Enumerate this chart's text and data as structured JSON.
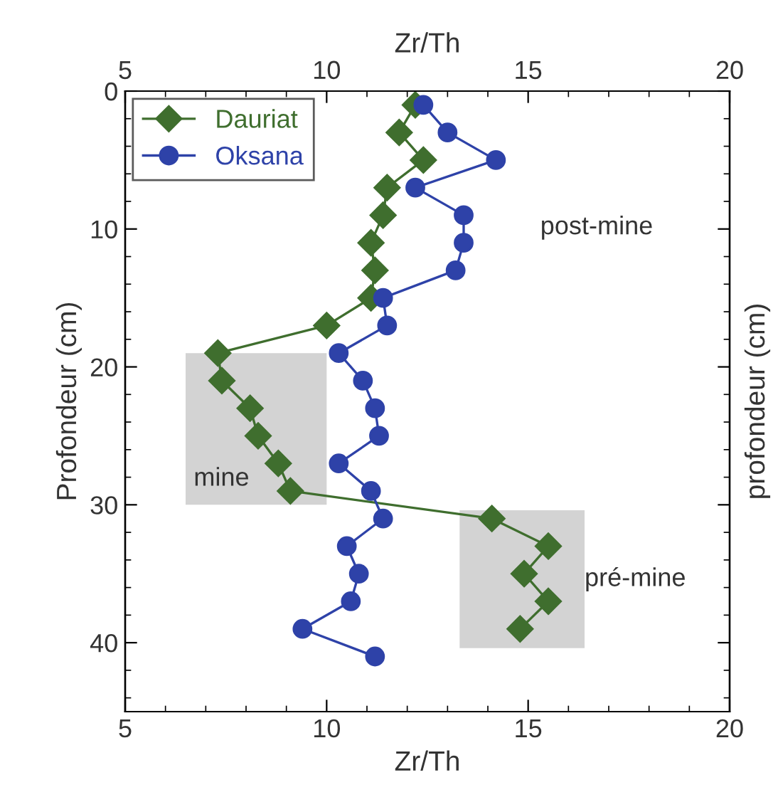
{
  "chart_data": {
    "type": "line",
    "orientation": "horizontal",
    "xlabel": "Zr/Th",
    "x2label": "Zr/Th",
    "ylabel": "Profondeur (cm)",
    "y2label": "profondeur (cm)",
    "xlim": [
      5,
      20
    ],
    "xticks": [
      5,
      10,
      15,
      20
    ],
    "x2lim": [
      5,
      20
    ],
    "x2ticks": [
      5,
      10,
      15,
      20
    ],
    "ylim": [
      45,
      0
    ],
    "yticks": [
      0,
      10,
      20,
      30,
      40
    ],
    "legend": "top left",
    "grid": false,
    "line_style": "solid",
    "series": [
      {
        "name": "Dauriat",
        "color": "#3f6e2e",
        "marker": "diamond",
        "x": [
          1,
          3,
          5,
          7,
          9,
          11,
          13,
          15,
          17,
          19,
          21,
          23,
          25,
          27,
          29,
          31,
          33,
          35,
          37,
          39
        ],
        "values": [
          12.2,
          11.8,
          12.4,
          11.5,
          11.4,
          11.1,
          11.2,
          11.1,
          10.0,
          7.3,
          7.4,
          8.1,
          8.3,
          8.8,
          9.1,
          14.1,
          15.5,
          14.9,
          15.5,
          14.8
        ]
      },
      {
        "name": "Oksana",
        "color": "#2e42a8",
        "marker": "circle",
        "x": [
          1,
          3,
          5,
          7,
          9,
          11,
          13,
          15,
          17,
          19,
          21,
          23,
          25,
          27,
          29,
          31,
          33,
          35,
          37,
          39,
          41
        ],
        "values": [
          12.4,
          13.0,
          14.2,
          12.2,
          13.4,
          13.4,
          13.2,
          11.4,
          11.5,
          10.3,
          10.9,
          11.2,
          11.3,
          10.3,
          11.1,
          11.4,
          10.5,
          10.8,
          10.6,
          9.4,
          11.2
        ]
      }
    ],
    "bands": [
      {
        "axis": "y",
        "from": 19,
        "to": 30,
        "label": "mine",
        "color": "#d3d3d3"
      },
      {
        "axis": "y",
        "from": 30.4,
        "to": 40.4,
        "label": "pré-mine",
        "color": "#d3d3d3"
      }
    ],
    "annotations": [
      "post-mine"
    ]
  }
}
